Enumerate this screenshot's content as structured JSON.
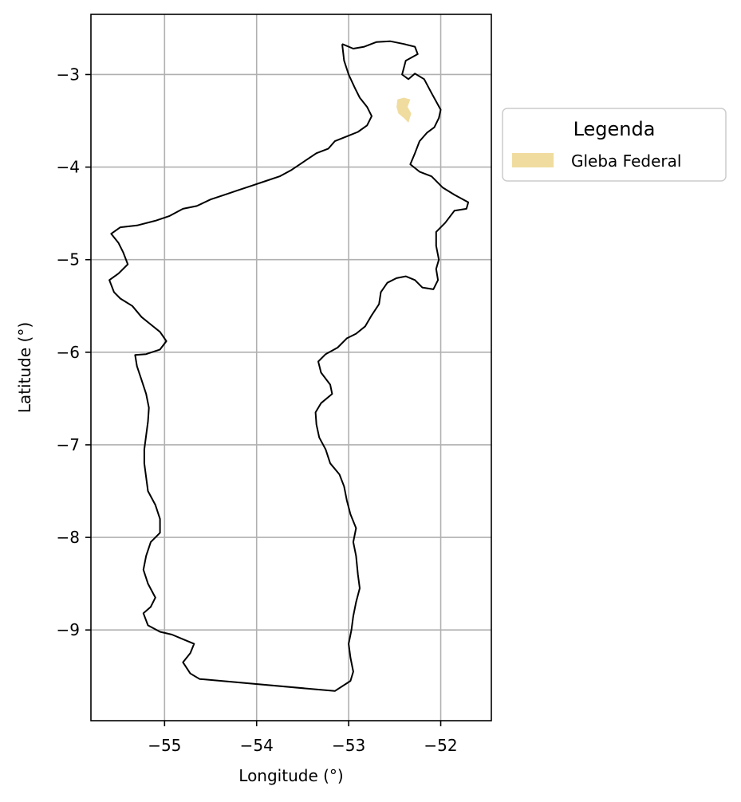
{
  "chart_data": {
    "type": "map",
    "xlabel": "Longitude (°)",
    "ylabel": "Latitude (°)",
    "xlim": [
      -55.8,
      -51.45
    ],
    "ylim": [
      -9.98,
      -2.35
    ],
    "grid": true,
    "x_ticks": [
      -55,
      -54,
      -53,
      -52
    ],
    "y_ticks": [
      -3,
      -4,
      -5,
      -6,
      -7,
      -8,
      -9
    ],
    "x_tick_labels": [
      "−55",
      "−54",
      "−53",
      "−52"
    ],
    "y_tick_labels": [
      "−3",
      "−4",
      "−5",
      "−6",
      "−7",
      "−8",
      "−9"
    ],
    "legend": {
      "title": "Legenda",
      "placement": "outside right, upper",
      "entries": [
        {
          "label": "Gleba Federal",
          "color": "#f0dc9e"
        }
      ]
    },
    "boundary_color": "#000000",
    "boundary": [
      [
        -53.07,
        -2.67
      ],
      [
        -52.95,
        -2.72
      ],
      [
        -52.83,
        -2.7
      ],
      [
        -52.7,
        -2.65
      ],
      [
        -52.55,
        -2.64
      ],
      [
        -52.4,
        -2.67
      ],
      [
        -52.28,
        -2.7
      ],
      [
        -52.25,
        -2.78
      ],
      [
        -52.38,
        -2.85
      ],
      [
        -52.42,
        -3.0
      ],
      [
        -52.35,
        -3.05
      ],
      [
        -52.28,
        -2.99
      ],
      [
        -52.18,
        -3.05
      ],
      [
        -52.1,
        -3.2
      ],
      [
        -52.0,
        -3.38
      ],
      [
        -52.02,
        -3.47
      ],
      [
        -52.07,
        -3.57
      ],
      [
        -52.15,
        -3.63
      ],
      [
        -52.23,
        -3.72
      ],
      [
        -52.28,
        -3.85
      ],
      [
        -52.33,
        -3.97
      ],
      [
        -52.23,
        -4.05
      ],
      [
        -52.1,
        -4.1
      ],
      [
        -51.98,
        -4.22
      ],
      [
        -51.85,
        -4.3
      ],
      [
        -51.7,
        -4.38
      ],
      [
        -51.72,
        -4.45
      ],
      [
        -51.85,
        -4.47
      ],
      [
        -51.95,
        -4.6
      ],
      [
        -52.05,
        -4.7
      ],
      [
        -52.05,
        -4.85
      ],
      [
        -52.02,
        -5.0
      ],
      [
        -52.05,
        -5.1
      ],
      [
        -52.03,
        -5.22
      ],
      [
        -52.08,
        -5.32
      ],
      [
        -52.2,
        -5.3
      ],
      [
        -52.28,
        -5.22
      ],
      [
        -52.38,
        -5.18
      ],
      [
        -52.48,
        -5.2
      ],
      [
        -52.58,
        -5.25
      ],
      [
        -52.65,
        -5.35
      ],
      [
        -52.67,
        -5.48
      ],
      [
        -52.75,
        -5.6
      ],
      [
        -52.82,
        -5.72
      ],
      [
        -52.92,
        -5.8
      ],
      [
        -53.02,
        -5.85
      ],
      [
        -53.12,
        -5.95
      ],
      [
        -53.25,
        -6.02
      ],
      [
        -53.33,
        -6.1
      ],
      [
        -53.3,
        -6.22
      ],
      [
        -53.2,
        -6.35
      ],
      [
        -53.18,
        -6.45
      ],
      [
        -53.3,
        -6.55
      ],
      [
        -53.36,
        -6.65
      ],
      [
        -53.35,
        -6.78
      ],
      [
        -53.32,
        -6.92
      ],
      [
        -53.25,
        -7.05
      ],
      [
        -53.2,
        -7.2
      ],
      [
        -53.1,
        -7.32
      ],
      [
        -53.05,
        -7.45
      ],
      [
        -53.02,
        -7.6
      ],
      [
        -52.98,
        -7.75
      ],
      [
        -52.92,
        -7.9
      ],
      [
        -52.95,
        -8.05
      ],
      [
        -52.92,
        -8.2
      ],
      [
        -52.9,
        -8.4
      ],
      [
        -52.88,
        -8.55
      ],
      [
        -52.92,
        -8.7
      ],
      [
        -52.95,
        -8.85
      ],
      [
        -52.97,
        -9.0
      ],
      [
        -53.0,
        -9.15
      ],
      [
        -52.98,
        -9.3
      ],
      [
        -52.95,
        -9.45
      ],
      [
        -52.98,
        -9.55
      ],
      [
        -53.15,
        -9.66
      ],
      [
        -54.62,
        -9.53
      ],
      [
        -54.72,
        -9.47
      ],
      [
        -54.8,
        -9.35
      ],
      [
        -54.72,
        -9.25
      ],
      [
        -54.68,
        -9.15
      ],
      [
        -54.8,
        -9.1
      ],
      [
        -54.92,
        -9.05
      ],
      [
        -55.05,
        -9.02
      ],
      [
        -55.18,
        -8.95
      ],
      [
        -55.23,
        -8.82
      ],
      [
        -55.15,
        -8.75
      ],
      [
        -55.1,
        -8.65
      ],
      [
        -55.18,
        -8.5
      ],
      [
        -55.23,
        -8.35
      ],
      [
        -55.2,
        -8.2
      ],
      [
        -55.15,
        -8.05
      ],
      [
        -55.05,
        -7.95
      ],
      [
        -55.05,
        -7.8
      ],
      [
        -55.1,
        -7.65
      ],
      [
        -55.18,
        -7.5
      ],
      [
        -55.2,
        -7.35
      ],
      [
        -55.22,
        -7.2
      ],
      [
        -55.22,
        -7.05
      ],
      [
        -55.2,
        -6.9
      ],
      [
        -55.18,
        -6.75
      ],
      [
        -55.17,
        -6.6
      ],
      [
        -55.2,
        -6.45
      ],
      [
        -55.25,
        -6.3
      ],
      [
        -55.3,
        -6.15
      ],
      [
        -55.32,
        -6.03
      ],
      [
        -55.2,
        -6.02
      ],
      [
        -55.05,
        -5.97
      ],
      [
        -54.98,
        -5.88
      ],
      [
        -55.05,
        -5.78
      ],
      [
        -55.15,
        -5.7
      ],
      [
        -55.25,
        -5.62
      ],
      [
        -55.35,
        -5.5
      ],
      [
        -55.48,
        -5.42
      ],
      [
        -55.55,
        -5.35
      ],
      [
        -55.6,
        -5.22
      ],
      [
        -55.5,
        -5.15
      ],
      [
        -55.4,
        -5.05
      ],
      [
        -55.45,
        -4.92
      ],
      [
        -55.5,
        -4.82
      ],
      [
        -55.58,
        -4.72
      ],
      [
        -55.48,
        -4.65
      ],
      [
        -55.3,
        -4.63
      ],
      [
        -55.1,
        -4.58
      ],
      [
        -54.95,
        -4.53
      ],
      [
        -54.8,
        -4.45
      ],
      [
        -54.65,
        -4.42
      ],
      [
        -54.5,
        -4.35
      ],
      [
        -54.35,
        -4.3
      ],
      [
        -54.2,
        -4.25
      ],
      [
        -54.05,
        -4.2
      ],
      [
        -53.9,
        -4.15
      ],
      [
        -53.75,
        -4.1
      ],
      [
        -53.62,
        -4.03
      ],
      [
        -53.5,
        -3.95
      ],
      [
        -53.35,
        -3.85
      ],
      [
        -53.22,
        -3.8
      ],
      [
        -53.15,
        -3.72
      ],
      [
        -53.05,
        -3.68
      ],
      [
        -52.9,
        -3.62
      ],
      [
        -52.8,
        -3.55
      ],
      [
        -52.75,
        -3.45
      ],
      [
        -52.8,
        -3.35
      ],
      [
        -52.88,
        -3.25
      ],
      [
        -52.93,
        -3.15
      ],
      [
        -53.0,
        -3.0
      ],
      [
        -53.05,
        -2.85
      ],
      [
        -53.07,
        -2.67
      ]
    ],
    "gleba_federal": [
      [
        -52.47,
        -3.27
      ],
      [
        -52.4,
        -3.25
      ],
      [
        -52.33,
        -3.27
      ],
      [
        -52.36,
        -3.35
      ],
      [
        -52.32,
        -3.42
      ],
      [
        -52.35,
        -3.52
      ],
      [
        -52.4,
        -3.47
      ],
      [
        -52.46,
        -3.42
      ],
      [
        -52.48,
        -3.35
      ],
      [
        -52.47,
        -3.27
      ]
    ]
  }
}
